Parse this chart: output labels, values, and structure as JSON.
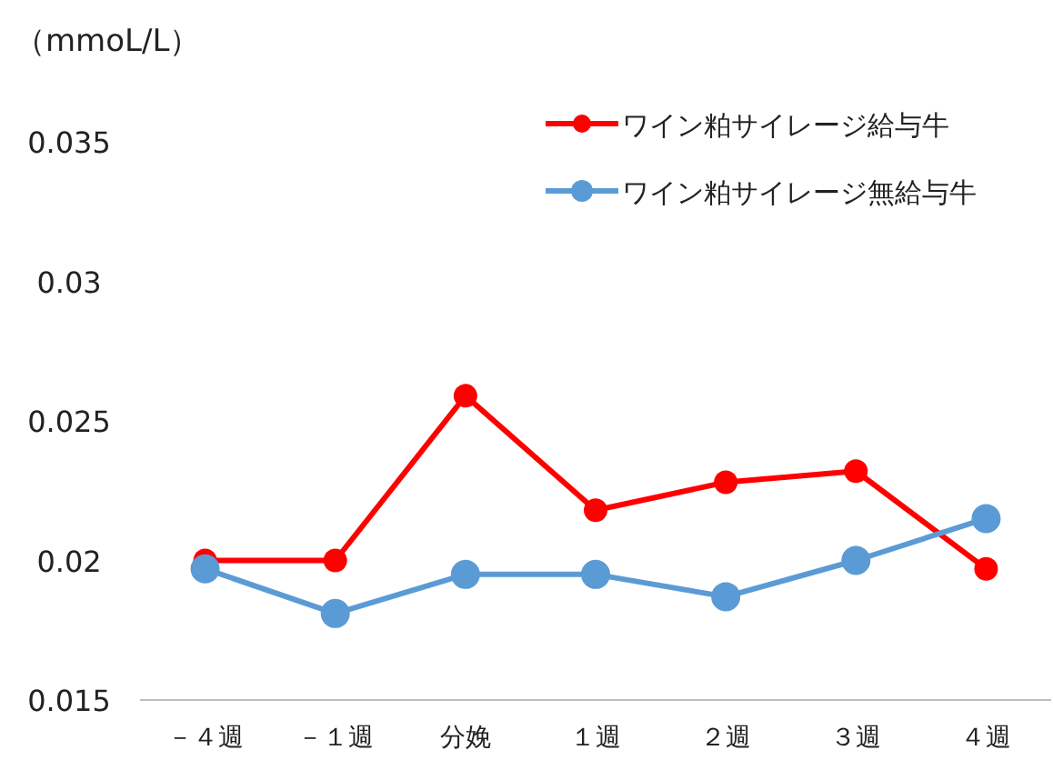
{
  "chart_data": {
    "type": "line",
    "ylabel": "（mmoL/L）",
    "categories": [
      "－４週",
      "－１週",
      "分娩",
      "１週",
      "２週",
      "３週",
      "４週"
    ],
    "series": [
      {
        "name": "ワイン粕サイレージ給与牛",
        "color": "#ff0000",
        "values": [
          0.02,
          0.02,
          0.0259,
          0.0218,
          0.0228,
          0.0232,
          0.0197
        ]
      },
      {
        "name": "ワイン粕サイレージ無給与牛",
        "color": "#5b9bd5",
        "values": [
          0.0197,
          0.0181,
          0.0195,
          0.0195,
          0.0187,
          0.02,
          0.0215
        ]
      }
    ],
    "ylim": [
      0.015,
      0.035
    ],
    "yticks": [
      0.015,
      0.02,
      0.025,
      0.03,
      0.035
    ],
    "marker": "circle",
    "legend": "top right",
    "grid": false
  }
}
